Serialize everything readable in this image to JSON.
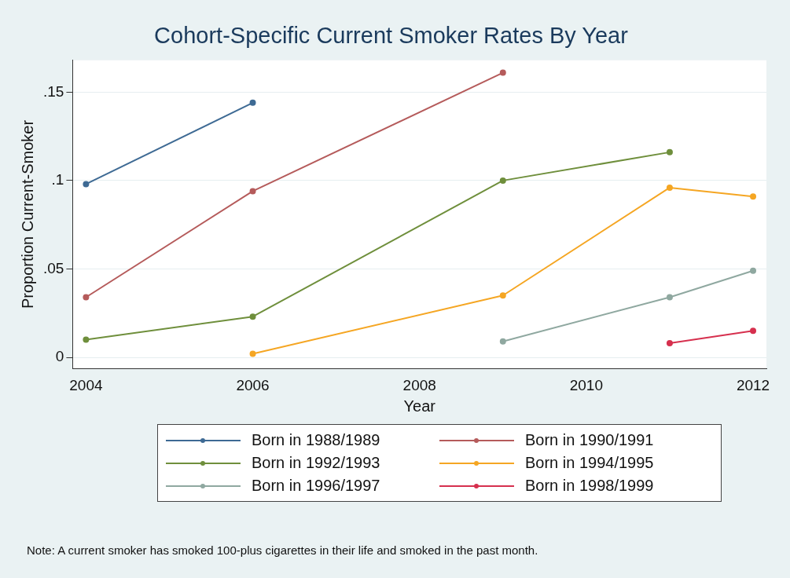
{
  "chart_data": {
    "type": "line",
    "title": "Cohort-Specific Current Smoker Rates By Year",
    "xlabel": "Year",
    "ylabel": "Proportion Current-Smoker",
    "xlim": [
      2003.84,
      2012.16
    ],
    "xticks": [
      2004,
      2006,
      2008,
      2010,
      2012
    ],
    "ylim": [
      -0.0063,
      0.168
    ],
    "yticks": [
      {
        "value": 0,
        "label": "0"
      },
      {
        "value": 0.05,
        "label": ".05"
      },
      {
        "value": 0.1,
        "label": ".1"
      },
      {
        "value": 0.15,
        "label": ".15"
      }
    ],
    "grid": "y",
    "legend": "bottom",
    "marker": "circle",
    "line_style": "solid",
    "series": [
      {
        "name": "Born in 1988/1989",
        "color": "#3e6a94",
        "x": [
          2004,
          2006
        ],
        "values": [
          0.098,
          0.144
        ]
      },
      {
        "name": "Born in 1990/1991",
        "color": "#b55b5b",
        "x": [
          2004,
          2006,
          2009
        ],
        "values": [
          0.034,
          0.094,
          0.161
        ]
      },
      {
        "name": "Born in 1992/1993",
        "color": "#6f8f3c",
        "x": [
          2004,
          2006,
          2009,
          2011
        ],
        "values": [
          0.01,
          0.023,
          0.1,
          0.116
        ]
      },
      {
        "name": "Born in 1994/1995",
        "color": "#f5a623",
        "x": [
          2006,
          2009,
          2011,
          2012
        ],
        "values": [
          0.002,
          0.035,
          0.096,
          0.091
        ]
      },
      {
        "name": "Born in 1996/1997",
        "color": "#8fa8a0",
        "x": [
          2009,
          2011,
          2012
        ],
        "values": [
          0.009,
          0.034,
          0.049
        ]
      },
      {
        "name": "Born in 1998/1999",
        "color": "#d6304e",
        "x": [
          2011,
          2012
        ],
        "values": [
          0.008,
          0.015
        ]
      }
    ],
    "annotations": [
      "Note: A current smoker has smoked 100-plus cigarettes in their life and smoked in the past month."
    ]
  }
}
